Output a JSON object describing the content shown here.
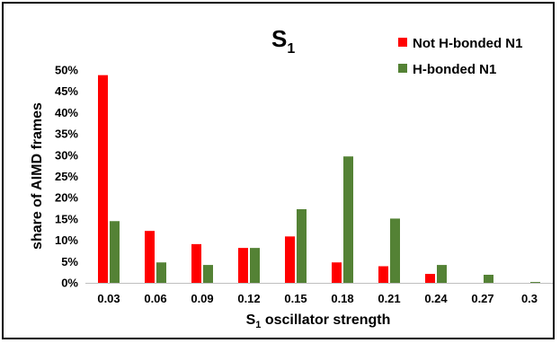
{
  "chart_data": {
    "type": "bar",
    "title_main": "S",
    "title_sub": "1",
    "xlabel_main": "S",
    "xlabel_sub": "1",
    "xlabel_rest": " oscillator strength",
    "ylabel": "share of AIMD frames",
    "categories": [
      "0.03",
      "0.06",
      "0.09",
      "0.12",
      "0.15",
      "0.18",
      "0.21",
      "0.24",
      "0.27",
      "0.3"
    ],
    "ylim": [
      0,
      50
    ],
    "yticks": [
      "0%",
      "5%",
      "10%",
      "15%",
      "20%",
      "25%",
      "30%",
      "35%",
      "40%",
      "45%",
      "50%"
    ],
    "ytick_values": [
      0,
      5,
      10,
      15,
      20,
      25,
      30,
      35,
      40,
      45,
      50
    ],
    "legend_position": "top-right",
    "grid": false,
    "series": [
      {
        "name": "Not H-bonded N1",
        "color": "#ff0000",
        "values": [
          48.8,
          12.2,
          9.1,
          8.2,
          10.9,
          4.8,
          3.9,
          2.1,
          0,
          0
        ]
      },
      {
        "name": "H-bonded N1",
        "color": "#548235",
        "values": [
          14.5,
          4.8,
          4.2,
          8.2,
          17.3,
          29.7,
          15.1,
          4.2,
          1.9,
          0.2
        ]
      }
    ]
  }
}
